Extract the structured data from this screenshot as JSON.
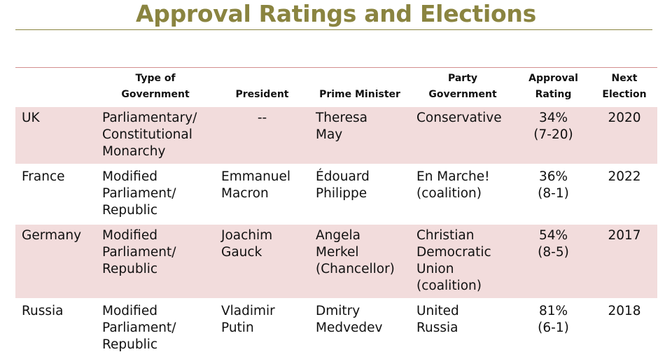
{
  "title": "Approval Ratings and Elections",
  "table": {
    "headers": [
      "",
      "Type of\nGovernment",
      "President",
      "Prime Minister",
      "Party\nGovernment",
      "Approval\nRating",
      "Next\nElection"
    ],
    "rows": [
      {
        "country": "UK",
        "government_type": "Parliamentary/\nConstitutional\nMonarchy",
        "president": "--",
        "prime_minister": "Theresa\nMay",
        "party": "Conservative",
        "approval": "34%\n(7-20)",
        "next_election": "2020"
      },
      {
        "country": "France",
        "government_type": "Modified\nParliament/\nRepublic",
        "president": "Emmanuel\nMacron",
        "prime_minister": "Édouard\nPhilippe",
        "party": "En Marche!\n(coalition)",
        "approval": "36%\n(8-1)",
        "next_election": "2022"
      },
      {
        "country": "Germany",
        "government_type": "Modified\nParliament/\nRepublic",
        "president": "Joachim\nGauck",
        "prime_minister": "Angela\nMerkel\n(Chancellor)",
        "party": "Christian\nDemocratic\nUnion\n(coalition)",
        "approval": "54%\n(8-5)",
        "next_election": "2017"
      },
      {
        "country": "Russia",
        "government_type": "Modified\nParliament/\nRepublic",
        "president": "Vladimir\nPutin",
        "prime_minister": "Dmitry\nMedvedev",
        "party": "United\nRussia",
        "approval": "81%\n(6-1)",
        "next_election": "2018"
      }
    ]
  },
  "colors": {
    "title": "#8a8440",
    "header_rule": "#d38f8f",
    "row_shade": "#f2dcdc"
  }
}
